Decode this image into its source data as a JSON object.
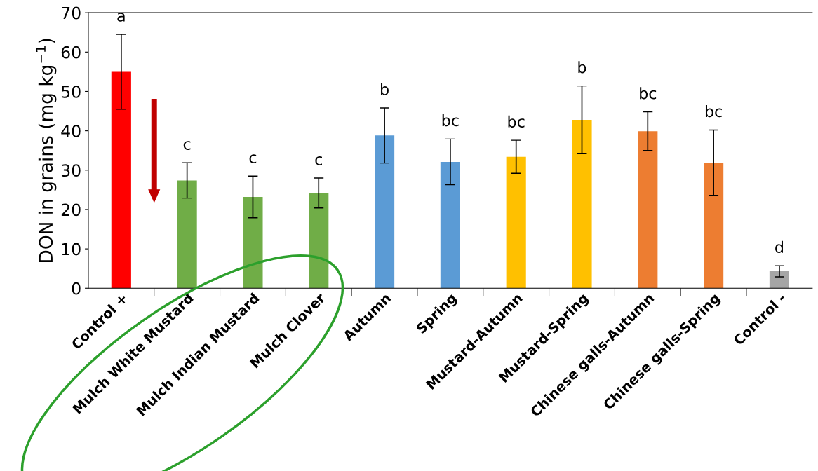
{
  "chart_data": {
    "type": "bar",
    "ylabel": "DON in grains (mg kg$^{−1}$)",
    "categories": [
      "Control +",
      "Mulch White Mustard",
      "Mulch Indian Mustard",
      "Mulch Clover",
      "Autumn",
      "Spring",
      "Mustard-Autumn",
      "Mustard-Spring",
      "Chinese galls-Autumn",
      "Chinese galls-Spring",
      "Control -"
    ],
    "values": [
      55.0,
      27.4,
      23.2,
      24.2,
      38.8,
      32.1,
      33.4,
      42.8,
      39.9,
      31.9,
      4.3
    ],
    "errors": [
      9.5,
      4.5,
      5.3,
      3.8,
      7.0,
      5.8,
      4.2,
      8.6,
      4.9,
      8.3,
      1.4
    ],
    "colors": [
      "#ff0000",
      "#70ad47",
      "#70ad47",
      "#70ad47",
      "#5b9bd5",
      "#5b9bd5",
      "#ffc000",
      "#ffc000",
      "#ed7d31",
      "#ed7d31",
      "#a5a5a5"
    ],
    "ylim": [
      0,
      70
    ],
    "yticks": [
      0,
      10,
      20,
      30,
      40,
      50,
      60,
      70
    ],
    "grid": false,
    "legend": false,
    "annotations": [
      "a",
      "c",
      "c",
      "c",
      "b",
      "bc",
      "bc",
      "b",
      "bc",
      "bc",
      "d"
    ]
  }
}
